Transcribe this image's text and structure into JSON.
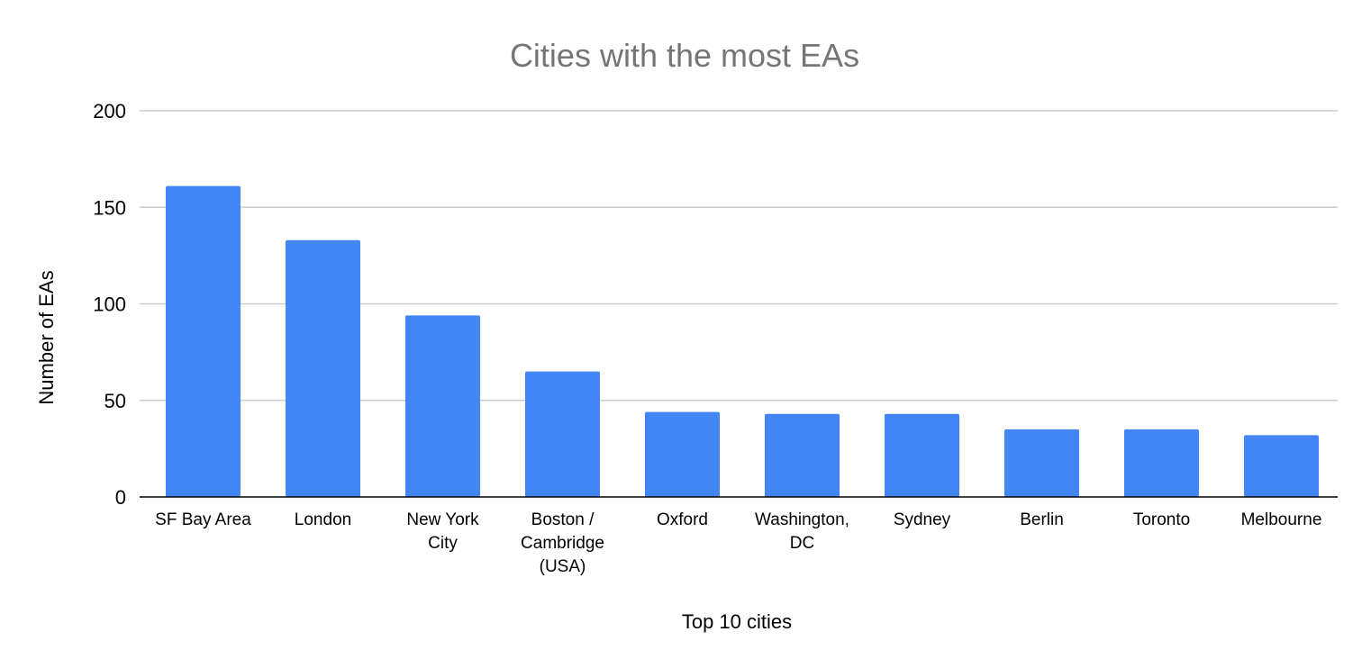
{
  "chart_data": {
    "type": "bar",
    "title": "Cities with the most EAs",
    "xlabel": "Top 10 cities",
    "ylabel": "Number of EAs",
    "categories": [
      "SF Bay Area",
      "London",
      "New York City",
      "Boston / Cambridge (USA)",
      "Oxford",
      "Washington, DC",
      "Sydney",
      "Berlin",
      "Toronto",
      "Melbourne"
    ],
    "category_label_lines": [
      [
        "SF Bay Area"
      ],
      [
        "London"
      ],
      [
        "New York",
        "City"
      ],
      [
        "Boston /",
        "Cambridge",
        "(USA)"
      ],
      [
        "Oxford"
      ],
      [
        "Washington,",
        "DC"
      ],
      [
        "Sydney"
      ],
      [
        "Berlin"
      ],
      [
        "Toronto"
      ],
      [
        "Melbourne"
      ]
    ],
    "values": [
      161,
      133,
      94,
      65,
      44,
      43,
      43,
      35,
      35,
      32
    ],
    "ylim": [
      0,
      200
    ],
    "yticks": [
      0,
      50,
      100,
      150,
      200
    ],
    "ytick_labels": [
      "0",
      "50",
      "100",
      "150",
      "200"
    ],
    "grid": true,
    "legend": "none",
    "bar_color": "#4285f4",
    "grid_color": "#cccccc",
    "axis_color": "#000000",
    "title_color": "#757575"
  }
}
